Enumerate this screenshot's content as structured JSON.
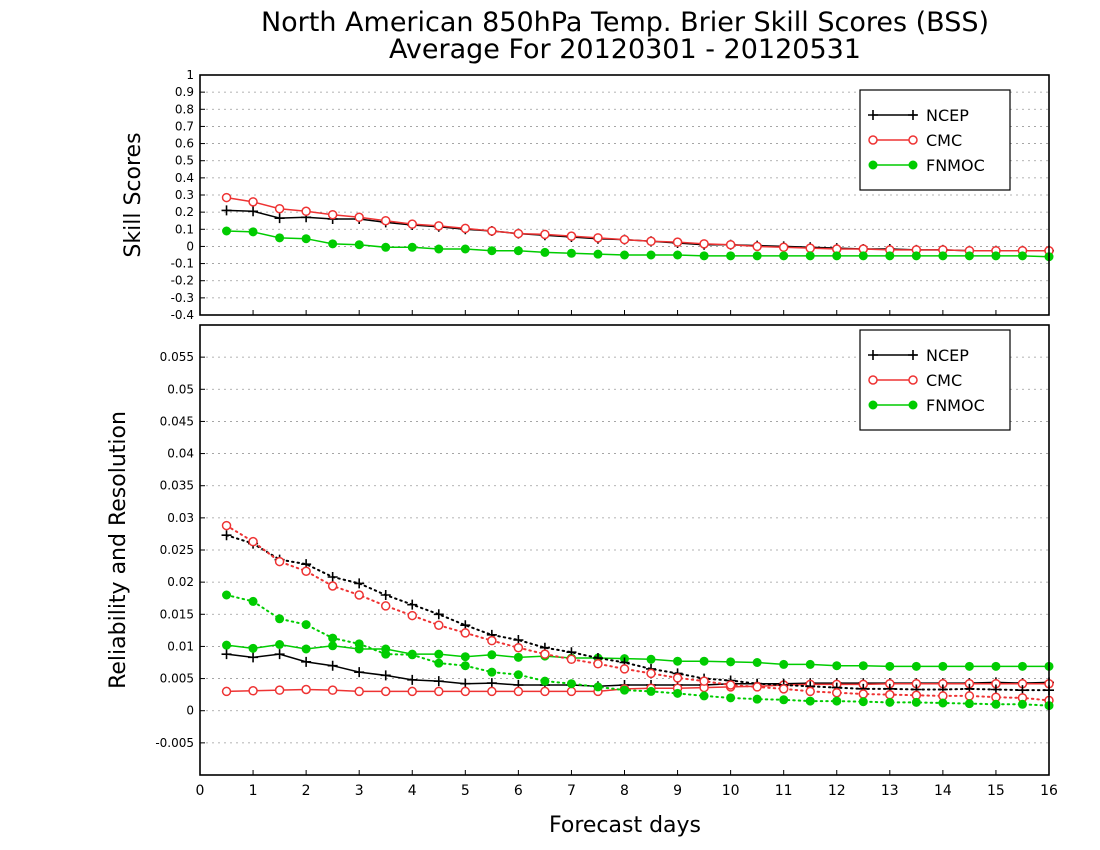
{
  "title_line1": "North American 850hPa Temp. Brier Skill Scores (BSS)",
  "title_line2": "Average For 20120301 - 20120531",
  "x_axis_label": "Forecast days",
  "colors": {
    "NCEP": "#000000",
    "CMC": "#ee3333",
    "FNMOC": "#00cc00"
  },
  "chart_data": [
    {
      "type": "line",
      "ylabel": "Skill Scores",
      "xlabel": "Forecast days",
      "xlim": [
        0,
        16
      ],
      "ylim": [
        -0.4,
        1
      ],
      "x_ticks": [
        0,
        1,
        2,
        3,
        4,
        5,
        6,
        7,
        8,
        9,
        10,
        11,
        12,
        13,
        14,
        15,
        16
      ],
      "y_ticks": [
        -0.4,
        -0.3,
        -0.2,
        -0.1,
        0,
        0.1,
        0.2,
        0.3,
        0.4,
        0.5,
        0.6,
        0.7,
        0.8,
        0.9,
        1
      ],
      "y_tick_labels": [
        "-0.4",
        "-0.3",
        "-0.2",
        "-0.1",
        "0",
        "0.1",
        "0.2",
        "0.3",
        "0.4",
        "0.5",
        "0.6",
        "0.7",
        "0.8",
        "0.9",
        "1"
      ],
      "grid": true,
      "legend": "top-right",
      "x": [
        0.5,
        1,
        1.5,
        2,
        2.5,
        3,
        3.5,
        4,
        4.5,
        5,
        5.5,
        6,
        6.5,
        7,
        7.5,
        8,
        8.5,
        9,
        9.5,
        10,
        10.5,
        11,
        11.5,
        12,
        12.5,
        13,
        13.5,
        14,
        14.5,
        15,
        15.5,
        16
      ],
      "series": [
        {
          "name": "NCEP",
          "style": "solid",
          "marker": "plus",
          "values": [
            0.21,
            0.205,
            0.165,
            0.17,
            0.16,
            0.16,
            0.14,
            0.125,
            0.115,
            0.1,
            0.09,
            0.075,
            0.065,
            0.055,
            0.045,
            0.04,
            0.03,
            0.02,
            0.01,
            0.01,
            0.005,
            0.0,
            -0.005,
            -0.01,
            -0.015,
            -0.015,
            -0.02,
            -0.02,
            -0.025,
            -0.025,
            -0.025,
            -0.025
          ]
        },
        {
          "name": "CMC",
          "style": "solid",
          "marker": "open-circle",
          "values": [
            0.285,
            0.26,
            0.22,
            0.205,
            0.185,
            0.17,
            0.15,
            0.13,
            0.12,
            0.105,
            0.09,
            0.075,
            0.07,
            0.06,
            0.05,
            0.04,
            0.03,
            0.025,
            0.015,
            0.01,
            0.0,
            -0.005,
            -0.01,
            -0.015,
            -0.015,
            -0.02,
            -0.02,
            -0.02,
            -0.025,
            -0.025,
            -0.025,
            -0.025
          ]
        },
        {
          "name": "FNMOC",
          "style": "solid",
          "marker": "filled-circle",
          "values": [
            0.09,
            0.085,
            0.05,
            0.045,
            0.015,
            0.01,
            -0.005,
            -0.005,
            -0.015,
            -0.015,
            -0.025,
            -0.025,
            -0.035,
            -0.04,
            -0.045,
            -0.05,
            -0.05,
            -0.05,
            -0.055,
            -0.055,
            -0.055,
            -0.055,
            -0.055,
            -0.055,
            -0.055,
            -0.055,
            -0.055,
            -0.055,
            -0.055,
            -0.055,
            -0.055,
            -0.06
          ]
        }
      ]
    },
    {
      "type": "line",
      "ylabel": "Reliability and Resolution",
      "xlabel": "Forecast days",
      "xlim": [
        0,
        16
      ],
      "ylim": [
        -0.01,
        0.06
      ],
      "x_ticks": [
        0,
        1,
        2,
        3,
        4,
        5,
        6,
        7,
        8,
        9,
        10,
        11,
        12,
        13,
        14,
        15,
        16
      ],
      "y_ticks": [
        -0.005,
        0,
        0.005,
        0.01,
        0.015,
        0.02,
        0.025,
        0.03,
        0.035,
        0.04,
        0.045,
        0.05,
        0.055
      ],
      "y_tick_labels": [
        "-0.005",
        "0",
        "0.005",
        "0.01",
        "0.015",
        "0.02",
        "0.025",
        "0.03",
        "0.035",
        "0.04",
        "0.045",
        "0.05",
        "0.055"
      ],
      "grid": true,
      "legend": "top-right",
      "x": [
        0.5,
        1,
        1.5,
        2,
        2.5,
        3,
        3.5,
        4,
        4.5,
        5,
        5.5,
        6,
        6.5,
        7,
        7.5,
        8,
        8.5,
        9,
        9.5,
        10,
        10.5,
        11,
        11.5,
        12,
        12.5,
        13,
        13.5,
        14,
        14.5,
        15,
        15.5,
        16
      ],
      "series": [
        {
          "name": "NCEP",
          "style": "solid",
          "marker": "plus",
          "values": [
            0.0088,
            0.0083,
            0.0088,
            0.0076,
            0.007,
            0.006,
            0.0055,
            0.0048,
            0.0046,
            0.0042,
            0.0043,
            0.004,
            0.004,
            0.004,
            0.0038,
            0.004,
            0.004,
            0.004,
            0.004,
            0.0042,
            0.0042,
            0.0042,
            0.0043,
            0.0043,
            0.0043,
            0.0043,
            0.0043,
            0.0043,
            0.0043,
            0.0044,
            0.0043,
            0.0044
          ]
        },
        {
          "name": "CMC",
          "style": "solid",
          "marker": "open-circle",
          "values": [
            0.003,
            0.0031,
            0.0032,
            0.0033,
            0.0032,
            0.003,
            0.003,
            0.003,
            0.003,
            0.003,
            0.003,
            0.003,
            0.003,
            0.003,
            0.003,
            0.0034,
            0.0035,
            0.0035,
            0.0036,
            0.0037,
            0.0038,
            0.004,
            0.0041,
            0.0041,
            0.0041,
            0.0042,
            0.0042,
            0.0042,
            0.0042,
            0.0042,
            0.0042,
            0.0042
          ]
        },
        {
          "name": "FNMOC",
          "style": "solid",
          "marker": "filled-circle",
          "values": [
            0.0102,
            0.0097,
            0.0103,
            0.0096,
            0.0101,
            0.0096,
            0.0096,
            0.0088,
            0.0088,
            0.0084,
            0.0087,
            0.0083,
            0.0085,
            0.0082,
            0.0082,
            0.0081,
            0.008,
            0.0077,
            0.0077,
            0.0076,
            0.0075,
            0.0072,
            0.0072,
            0.007,
            0.007,
            0.0069,
            0.0069,
            0.0069,
            0.0069,
            0.0069,
            0.0069,
            0.0069
          ]
        },
        {
          "name": "NCEP",
          "style": "dotted",
          "marker": "plus",
          "values": [
            0.0273,
            0.026,
            0.0235,
            0.0228,
            0.0208,
            0.0198,
            0.018,
            0.0165,
            0.015,
            0.0133,
            0.0118,
            0.011,
            0.0098,
            0.0091,
            0.0082,
            0.0075,
            0.0065,
            0.0058,
            0.005,
            0.0047,
            0.0042,
            0.004,
            0.0038,
            0.0036,
            0.0034,
            0.0034,
            0.0033,
            0.0033,
            0.0034,
            0.0033,
            0.0032,
            0.0032
          ]
        },
        {
          "name": "CMC",
          "style": "dotted",
          "marker": "open-circle",
          "values": [
            0.0288,
            0.0263,
            0.0232,
            0.0217,
            0.0194,
            0.018,
            0.0163,
            0.0148,
            0.0133,
            0.0121,
            0.0109,
            0.0098,
            0.0088,
            0.008,
            0.0073,
            0.0065,
            0.0058,
            0.0051,
            0.0046,
            0.004,
            0.0037,
            0.0034,
            0.003,
            0.0028,
            0.0026,
            0.0025,
            0.0024,
            0.0023,
            0.0023,
            0.0021,
            0.002,
            0.0016
          ]
        },
        {
          "name": "FNMOC",
          "style": "dotted",
          "marker": "filled-circle",
          "values": [
            0.018,
            0.017,
            0.0143,
            0.0134,
            0.0113,
            0.0104,
            0.0088,
            0.0087,
            0.0074,
            0.007,
            0.006,
            0.0056,
            0.0046,
            0.0042,
            0.0037,
            0.0032,
            0.003,
            0.0027,
            0.0023,
            0.002,
            0.0018,
            0.0017,
            0.0015,
            0.0015,
            0.0014,
            0.0013,
            0.0013,
            0.0012,
            0.0011,
            0.001,
            0.001,
            0.0008
          ]
        }
      ]
    }
  ]
}
